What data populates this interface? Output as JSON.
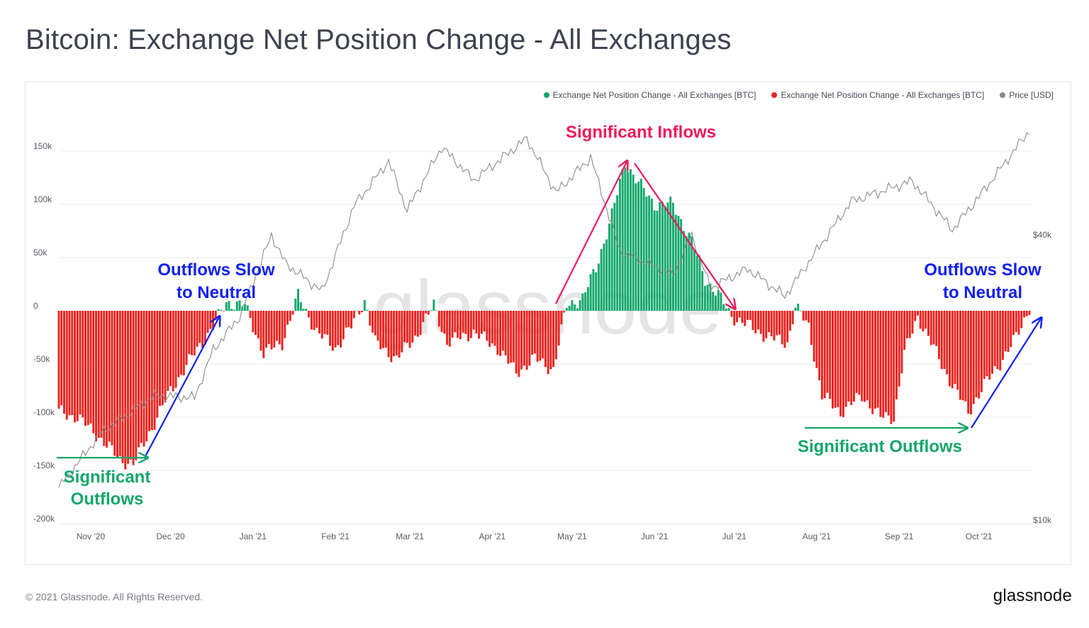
{
  "title": "Bitcoin: Exchange Net Position Change - All Exchanges",
  "footer": "© 2021 Glassnode. All Rights Reserved.",
  "brand": "glassnode",
  "watermark": "glassnode",
  "colors": {
    "positive": "#13a86b",
    "negative": "#e8231f",
    "price": "#a0a0a0",
    "annotation_pink": "#f0185b",
    "annotation_blue": "#1020f0",
    "annotation_green": "#14a66a"
  },
  "legend": [
    {
      "label": "Exchange Net Position Change - All Exchanges [BTC]",
      "color": "#13a86b"
    },
    {
      "label": "Exchange Net Position Change - All Exchanges [BTC]",
      "color": "#e8231f"
    },
    {
      "label": "Price [USD]",
      "color": "#8a8a8a"
    }
  ],
  "annotations": {
    "inflows": "Significant Inflows",
    "outflows_slow_left_1": "Outflows Slow",
    "outflows_slow_left_2": "to Neutral",
    "outflows_slow_right_1": "Outflows Slow",
    "outflows_slow_right_2": "to Neutral",
    "sig_outflows_left_1": "Significant",
    "sig_outflows_left_2": "Outflows",
    "sig_outflows_right": "Significant Outflows"
  },
  "chart_data": {
    "type": "bar",
    "title": "Bitcoin: Exchange Net Position Change - All Exchanges",
    "y_left": {
      "label": "BTC",
      "ticks": [
        "150k",
        "100k",
        "50k",
        "0",
        "-50k",
        "-100k",
        "-150k",
        "-200k"
      ],
      "range": [
        -200000,
        150000
      ]
    },
    "y_right": {
      "label": "Price [USD]",
      "scale": "log",
      "ticks": [
        "$40k",
        "$10k"
      ]
    },
    "x_ticks": [
      "Nov '20",
      "Dec '20",
      "Jan '21",
      "Feb '21",
      "Mar '21",
      "Apr '21",
      "May '21",
      "Jun '21",
      "Jul '21",
      "Aug '21",
      "Sep '21",
      "Oct '21"
    ],
    "grid": true,
    "legend_position": "top-right",
    "net_position_anchors": [
      {
        "date": "2020-10-20",
        "value": -95000
      },
      {
        "date": "2020-10-27",
        "value": -100000
      },
      {
        "date": "2020-11-04",
        "value": -118000
      },
      {
        "date": "2020-11-12",
        "value": -140000
      },
      {
        "date": "2020-11-17",
        "value": -144000
      },
      {
        "date": "2020-11-24",
        "value": -110000
      },
      {
        "date": "2020-12-01",
        "value": -75000
      },
      {
        "date": "2020-12-10",
        "value": -40000
      },
      {
        "date": "2020-12-17",
        "value": -15000
      },
      {
        "date": "2020-12-22",
        "value": 8000
      },
      {
        "date": "2020-12-29",
        "value": 5000
      },
      {
        "date": "2021-01-05",
        "value": -40000
      },
      {
        "date": "2021-01-12",
        "value": -30000
      },
      {
        "date": "2021-01-18",
        "value": 14000
      },
      {
        "date": "2021-01-25",
        "value": -20000
      },
      {
        "date": "2021-02-01",
        "value": -35000
      },
      {
        "date": "2021-02-07",
        "value": -15000
      },
      {
        "date": "2021-02-12",
        "value": 10000
      },
      {
        "date": "2021-02-16",
        "value": -30000
      },
      {
        "date": "2021-02-24",
        "value": -45000
      },
      {
        "date": "2021-03-03",
        "value": -25000
      },
      {
        "date": "2021-03-10",
        "value": 5000
      },
      {
        "date": "2021-03-15",
        "value": -30000
      },
      {
        "date": "2021-03-25",
        "value": -20000
      },
      {
        "date": "2021-04-03",
        "value": -35000
      },
      {
        "date": "2021-04-10",
        "value": -58000
      },
      {
        "date": "2021-04-17",
        "value": -45000
      },
      {
        "date": "2021-04-24",
        "value": -55000
      },
      {
        "date": "2021-04-29",
        "value": 5000
      },
      {
        "date": "2021-05-05",
        "value": 12000
      },
      {
        "date": "2021-05-10",
        "value": 40000
      },
      {
        "date": "2021-05-16",
        "value": 90000
      },
      {
        "date": "2021-05-21",
        "value": 140000
      },
      {
        "date": "2021-05-26",
        "value": 120000
      },
      {
        "date": "2021-06-01",
        "value": 100000
      },
      {
        "date": "2021-06-08",
        "value": 100000
      },
      {
        "date": "2021-06-15",
        "value": 65000
      },
      {
        "date": "2021-06-20",
        "value": 30000
      },
      {
        "date": "2021-06-25",
        "value": 15000
      },
      {
        "date": "2021-06-30",
        "value": -5000
      },
      {
        "date": "2021-07-07",
        "value": -15000
      },
      {
        "date": "2021-07-14",
        "value": -25000
      },
      {
        "date": "2021-07-21",
        "value": -30000
      },
      {
        "date": "2021-07-24",
        "value": 4000
      },
      {
        "date": "2021-07-29",
        "value": -15000
      },
      {
        "date": "2021-08-03",
        "value": -80000
      },
      {
        "date": "2021-08-10",
        "value": -95000
      },
      {
        "date": "2021-08-18",
        "value": -80000
      },
      {
        "date": "2021-08-25",
        "value": -100000
      },
      {
        "date": "2021-08-30",
        "value": -100000
      },
      {
        "date": "2021-09-03",
        "value": -40000
      },
      {
        "date": "2021-09-08",
        "value": -5000
      },
      {
        "date": "2021-09-13",
        "value": -30000
      },
      {
        "date": "2021-09-20",
        "value": -65000
      },
      {
        "date": "2021-09-27",
        "value": -95000
      },
      {
        "date": "2021-10-03",
        "value": -70000
      },
      {
        "date": "2021-10-10",
        "value": -45000
      },
      {
        "date": "2021-10-15",
        "value": -25000
      },
      {
        "date": "2021-10-20",
        "value": 3000
      }
    ],
    "price_anchors_usd": [
      {
        "date": "2020-10-20",
        "value": 11900
      },
      {
        "date": "2020-11-05",
        "value": 15500
      },
      {
        "date": "2020-11-25",
        "value": 18500
      },
      {
        "date": "2020-12-10",
        "value": 18300
      },
      {
        "date": "2020-12-17",
        "value": 23000
      },
      {
        "date": "2020-12-27",
        "value": 27000
      },
      {
        "date": "2021-01-08",
        "value": 40000
      },
      {
        "date": "2021-01-13",
        "value": 35000
      },
      {
        "date": "2021-01-22",
        "value": 32000
      },
      {
        "date": "2021-01-27",
        "value": 30500
      },
      {
        "date": "2021-02-08",
        "value": 46000
      },
      {
        "date": "2021-02-21",
        "value": 57000
      },
      {
        "date": "2021-02-28",
        "value": 45000
      },
      {
        "date": "2021-03-13",
        "value": 61000
      },
      {
        "date": "2021-03-25",
        "value": 52000
      },
      {
        "date": "2021-04-14",
        "value": 63500
      },
      {
        "date": "2021-04-25",
        "value": 49000
      },
      {
        "date": "2021-05-08",
        "value": 58000
      },
      {
        "date": "2021-05-19",
        "value": 37000
      },
      {
        "date": "2021-06-08",
        "value": 33000
      },
      {
        "date": "2021-06-15",
        "value": 40000
      },
      {
        "date": "2021-06-22",
        "value": 31000
      },
      {
        "date": "2021-07-06",
        "value": 34000
      },
      {
        "date": "2021-07-20",
        "value": 29800
      },
      {
        "date": "2021-08-14",
        "value": 47000
      },
      {
        "date": "2021-09-06",
        "value": 51800
      },
      {
        "date": "2021-09-21",
        "value": 41000
      },
      {
        "date": "2021-10-01",
        "value": 48000
      },
      {
        "date": "2021-10-20",
        "value": 66000
      }
    ]
  }
}
